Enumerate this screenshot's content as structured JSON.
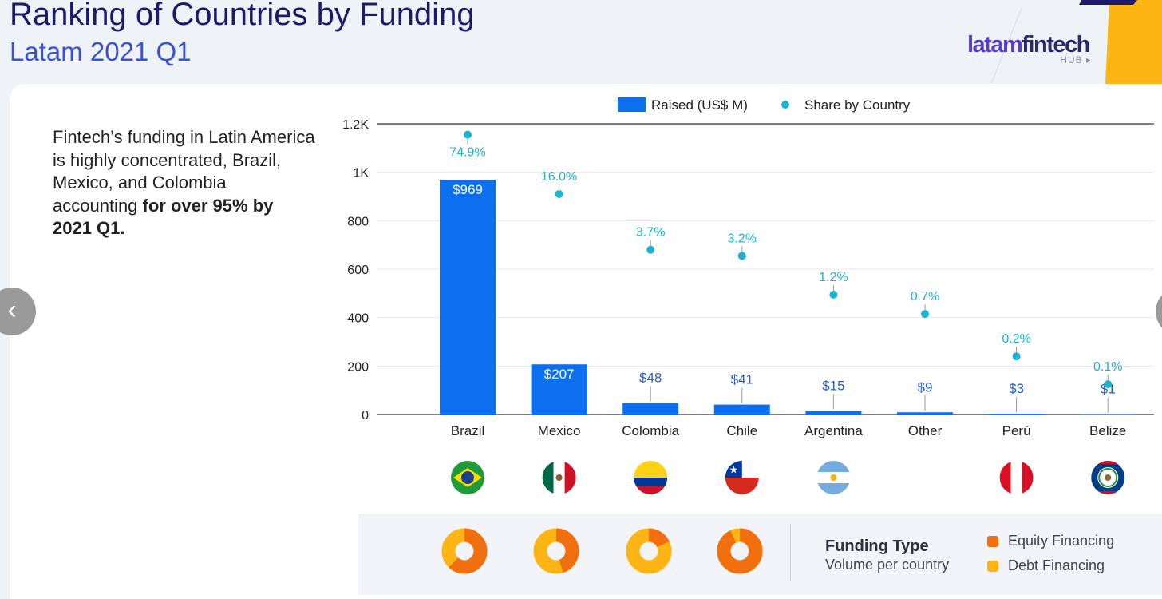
{
  "header": {
    "title": "Ranking of Countries by Funding",
    "subtitle": "Latam 2021 Q1",
    "logo_main": "latamfintech",
    "logo_sub": "HUB"
  },
  "description": {
    "text": "Fintech’s funding in Latin America is highly concentrated, Brazil, Mexico, and Colombia accounting ",
    "bold": "for over 95% by 2021 Q1."
  },
  "colors": {
    "bar": "#0b6ff0",
    "share_point": "#1bb3cf",
    "bar_label_inside": "#ffffff",
    "bar_label_outside": "#1f5fd0",
    "equity": "#f26f0f",
    "debt": "#fdb515",
    "title": "#1c1a6b",
    "subtitle": "#3a50d8"
  },
  "chart_data": {
    "type": "bar",
    "categories": [
      "Brazil",
      "Mexico",
      "Colombia",
      "Chile",
      "Argentina",
      "Other",
      "Perú",
      "Belize"
    ],
    "series": [
      {
        "name": "Raised (US$ M)",
        "type": "bar",
        "values": [
          969,
          207,
          48,
          41,
          15,
          9,
          3,
          1
        ],
        "labels": [
          "$969",
          "$207",
          "$48",
          "$41",
          "$15",
          "$9",
          "$3",
          "$1"
        ]
      },
      {
        "name": "Share by Country",
        "type": "scatter",
        "values": [
          74.9,
          16.0,
          3.7,
          3.2,
          1.2,
          0.7,
          0.2,
          0.1
        ],
        "labels": [
          "74.9%",
          "16.0%",
          "3.7%",
          "3.2%",
          "1.2%",
          "0.7%",
          "0.2%",
          "0.1%"
        ],
        "plot_positions": [
          1155,
          910,
          680,
          655,
          495,
          415,
          240,
          125
        ]
      }
    ],
    "yticks": [
      "0",
      "200",
      "400",
      "600",
      "800",
      "1K",
      "1.2K"
    ],
    "ytick_values": [
      0,
      200,
      400,
      600,
      800,
      1000,
      1200
    ],
    "ylim": [
      0,
      1200
    ],
    "grid": true,
    "legend": "top-center",
    "xlabel": "",
    "ylabel": ""
  },
  "flags": [
    {
      "country": "Brazil",
      "icon": "brazil-flag-icon"
    },
    {
      "country": "Mexico",
      "icon": "mexico-flag-icon"
    },
    {
      "country": "Colombia",
      "icon": "colombia-flag-icon"
    },
    {
      "country": "Chile",
      "icon": "chile-flag-icon"
    },
    {
      "country": "Argentina",
      "icon": "argentina-flag-icon"
    },
    {
      "country": "Other",
      "icon": ""
    },
    {
      "country": "Perú",
      "icon": "peru-flag-icon"
    },
    {
      "country": "Belize",
      "icon": "belize-flag-icon"
    }
  ],
  "funding_type": {
    "title": "Funding Type",
    "subtitle": "Volume per country",
    "legend": [
      {
        "label": "Equity Financing",
        "color": "#f26f0f"
      },
      {
        "label": "Debt Financing",
        "color": "#fdb515"
      }
    ],
    "donuts": [
      {
        "country": "Brazil",
        "equity_share": 0.62
      },
      {
        "country": "Mexico",
        "equity_share": 0.45
      },
      {
        "country": "Colombia",
        "equity_share": 0.18
      },
      {
        "country": "Chile",
        "equity_share": 0.93
      }
    ]
  },
  "nav": {
    "prev_icon": "chevron-left-icon",
    "next_icon": "chevron-right-icon",
    "prev_label": "‹"
  }
}
